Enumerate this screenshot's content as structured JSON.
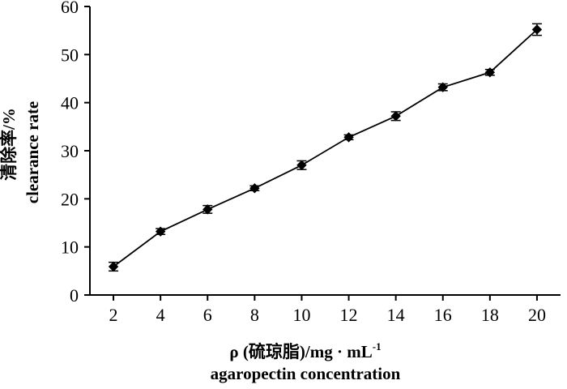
{
  "chart_data": {
    "type": "line",
    "title": "",
    "xlabel": "ρ (硫琼脂)/mg · mL",
    "xlabel_superscript": "-1",
    "xlabel_sub": "agaropectin concentration",
    "ylabel": "清除率/%",
    "ylabel_sub": "clearance rate",
    "x": [
      2,
      4,
      6,
      8,
      10,
      12,
      14,
      16,
      18,
      20
    ],
    "x_ticks": [
      "2",
      "4",
      "6",
      "8",
      "10",
      "12",
      "14",
      "16",
      "18",
      "20"
    ],
    "xlim": [
      1,
      21
    ],
    "ylim": [
      0,
      60
    ],
    "y_ticks": [
      "0",
      "10",
      "20",
      "30",
      "40",
      "50",
      "60"
    ],
    "grid": false,
    "series": [
      {
        "values": [
          5.9,
          13.2,
          17.8,
          22.2,
          27.0,
          32.8,
          37.2,
          43.2,
          46.3,
          55.2
        ],
        "errors": [
          0.9,
          0.6,
          0.8,
          0.5,
          0.9,
          0.5,
          0.9,
          0.7,
          0.6,
          1.2
        ],
        "marker": "diamond",
        "color": "#000000"
      }
    ]
  }
}
